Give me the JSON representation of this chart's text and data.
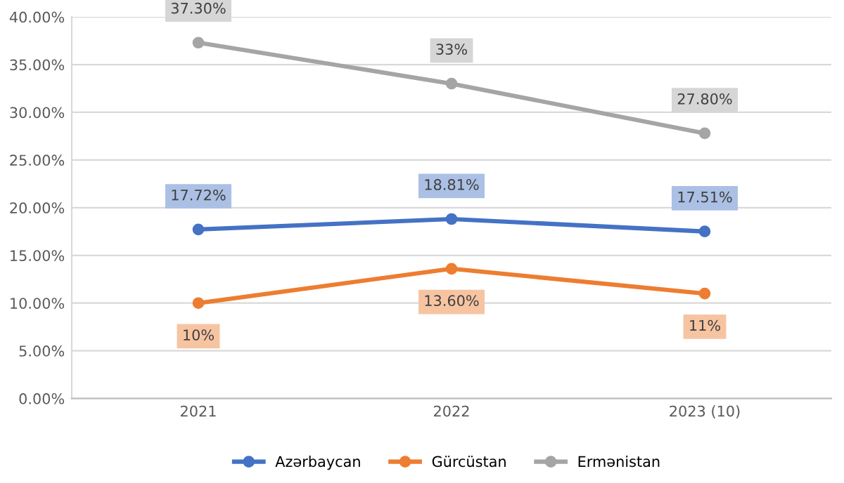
{
  "chart_data": {
    "type": "line",
    "categories": [
      "2021",
      "2022",
      "2023 (10)"
    ],
    "series": [
      {
        "name": "Azərbaycan",
        "color": "#4472c4",
        "values": [
          17.72,
          18.81,
          17.51
        ],
        "value_labels": [
          "17.72%",
          "18.81%",
          "17.51%"
        ]
      },
      {
        "name": "Gürcüstan",
        "color": "#ed7d31",
        "values": [
          10,
          13.6,
          11
        ],
        "value_labels": [
          "10%",
          "13.60%",
          "11%"
        ]
      },
      {
        "name": "Ermənistan",
        "color": "#a5a5a5",
        "values": [
          37.3,
          33,
          27.8
        ],
        "value_labels": [
          "37.30%",
          "33%",
          "27.80%"
        ]
      }
    ],
    "ylim": [
      0,
      40
    ],
    "yticks": [
      {
        "value": 0,
        "label": "0.00%"
      },
      {
        "value": 5,
        "label": "5.00%"
      },
      {
        "value": 10,
        "label": "10.00%"
      },
      {
        "value": 15,
        "label": "15.00%"
      },
      {
        "value": 20,
        "label": "20.00%"
      },
      {
        "value": 25,
        "label": "25.00%"
      },
      {
        "value": 30,
        "label": "30.00%"
      },
      {
        "value": 35,
        "label": "35.00%"
      },
      {
        "value": 40,
        "label": "40.00%"
      }
    ],
    "grid": "y",
    "legend": "bottom",
    "marker": "circle",
    "line_style": "solid"
  }
}
